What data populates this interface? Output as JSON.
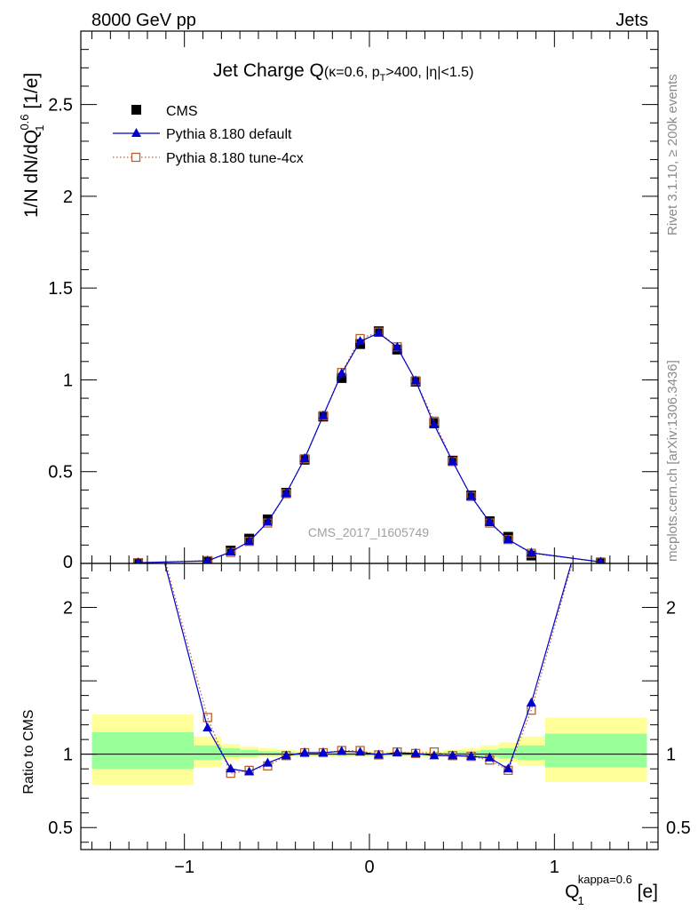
{
  "header": {
    "energy_label": "8000 GeV pp",
    "process_label": "Jets"
  },
  "side_labels": {
    "rivet": "Rivet 3.1.10, ≥ 200k events",
    "mcplots": "mcplots.cern.ch [arXiv:1306.3436]"
  },
  "chart_data": {
    "type": "scatter",
    "title": {
      "main": "Jet Charge Q",
      "sub_a": "(κ=0.6, p",
      "sub_sub": "T",
      "sub_b": ">400, |η|<1.5)"
    },
    "analysis_id": "CMS_2017_I1605749",
    "xlabel": {
      "base": "Q",
      "sub": "1",
      "sup": "kappa=0.6",
      "unit": " [e]"
    },
    "ylabel_main": {
      "pre": "1/N dN/dQ",
      "sub": "1",
      "sup": "0.6",
      "unit": " [1/e]"
    },
    "ylabel_ratio": "Ratio to CMS",
    "xlim": [
      -1.56,
      1.56
    ],
    "ylim_main": [
      0,
      2.9
    ],
    "ylim_ratio": [
      0.35,
      2.3
    ],
    "xticks": [
      -1,
      0,
      1
    ],
    "xtick_labels": [
      "−1",
      "0",
      "1"
    ],
    "yticks_main": [
      0.5,
      1,
      1.5,
      2,
      2.5
    ],
    "ytick_labels_main": [
      "0.5",
      "1",
      "1.5",
      "2",
      "2.5"
    ],
    "ytick_zero_label": "0",
    "yticks_ratio": [
      0.5,
      1,
      2
    ],
    "ytick_labels_ratio": [
      "0.5",
      "1",
      "2"
    ],
    "x": [
      -1.25,
      -0.875,
      -0.75,
      -0.65,
      -0.55,
      -0.45,
      -0.35,
      -0.25,
      -0.15,
      -0.05,
      0.05,
      0.15,
      0.25,
      0.35,
      0.45,
      0.55,
      0.65,
      0.75,
      0.875,
      1.25
    ],
    "bin_edges": [
      -1.5,
      -0.95,
      -0.8,
      -0.7,
      -0.6,
      -0.5,
      -0.4,
      -0.3,
      -0.2,
      -0.1,
      0,
      0.1,
      0.2,
      0.3,
      0.4,
      0.5,
      0.6,
      0.7,
      0.8,
      0.95,
      1.5
    ],
    "band_green": [
      [
        0.9,
        1.15
      ],
      [
        0.96,
        1.06
      ],
      [
        0.98,
        1.04
      ],
      [
        0.985,
        1.03
      ],
      [
        0.99,
        1.02
      ],
      [
        0.99,
        1.015
      ],
      [
        0.99,
        1.01
      ],
      [
        0.99,
        1.01
      ],
      [
        0.99,
        1.01
      ],
      [
        0.99,
        1.01
      ],
      [
        0.99,
        1.01
      ],
      [
        0.99,
        1.01
      ],
      [
        0.99,
        1.01
      ],
      [
        0.99,
        1.01
      ],
      [
        0.99,
        1.015
      ],
      [
        0.985,
        1.02
      ],
      [
        0.98,
        1.03
      ],
      [
        0.97,
        1.04
      ],
      [
        0.96,
        1.06
      ],
      [
        0.91,
        1.14
      ]
    ],
    "band_yellow": [
      [
        0.79,
        1.27
      ],
      [
        0.91,
        1.12
      ],
      [
        0.96,
        1.07
      ],
      [
        0.97,
        1.05
      ],
      [
        0.98,
        1.04
      ],
      [
        0.985,
        1.03
      ],
      [
        0.985,
        1.02
      ],
      [
        0.985,
        1.02
      ],
      [
        0.985,
        1.02
      ],
      [
        0.985,
        1.02
      ],
      [
        0.985,
        1.02
      ],
      [
        0.985,
        1.02
      ],
      [
        0.985,
        1.02
      ],
      [
        0.985,
        1.02
      ],
      [
        0.98,
        1.03
      ],
      [
        0.975,
        1.04
      ],
      [
        0.965,
        1.06
      ],
      [
        0.95,
        1.08
      ],
      [
        0.92,
        1.12
      ],
      [
        0.81,
        1.25
      ]
    ],
    "series": [
      {
        "name": "CMS",
        "color": "#000000",
        "values": [
          0.001,
          0.012,
          0.07,
          0.135,
          0.24,
          0.385,
          0.565,
          0.8,
          1.01,
          1.195,
          1.265,
          1.165,
          0.99,
          0.765,
          0.56,
          0.37,
          0.23,
          0.145,
          0.043,
          0.003
        ]
      },
      {
        "name": "Pythia 8.180 default",
        "color": "#0000cc",
        "values": [
          0.004,
          0.014,
          0.063,
          0.12,
          0.225,
          0.382,
          0.572,
          0.805,
          1.035,
          1.21,
          1.255,
          1.178,
          0.995,
          0.755,
          0.555,
          0.365,
          0.225,
          0.13,
          0.058,
          0.008
        ],
        "ratio": [
          3.0,
          1.18,
          0.9,
          0.88,
          0.94,
          0.99,
          1.01,
          1.01,
          1.02,
          1.015,
          0.995,
          1.01,
          1.005,
          0.99,
          0.99,
          0.985,
          0.975,
          0.9,
          1.35,
          3.0
        ]
      },
      {
        "name": "Pythia 8.180 tune-4cx",
        "color": "#b8602e",
        "values": [
          0.004,
          0.015,
          0.06,
          0.12,
          0.22,
          0.38,
          0.57,
          0.805,
          1.04,
          1.225,
          1.26,
          1.18,
          0.995,
          0.775,
          0.555,
          0.365,
          0.22,
          0.13,
          0.055,
          0.008
        ],
        "ratio": [
          3.0,
          1.25,
          0.87,
          0.89,
          0.92,
          0.99,
          1.01,
          1.01,
          1.025,
          1.025,
          0.995,
          1.015,
          1.005,
          1.015,
          0.99,
          0.985,
          0.96,
          0.89,
          1.3,
          3.0
        ]
      }
    ],
    "legend_position": "top-left"
  }
}
